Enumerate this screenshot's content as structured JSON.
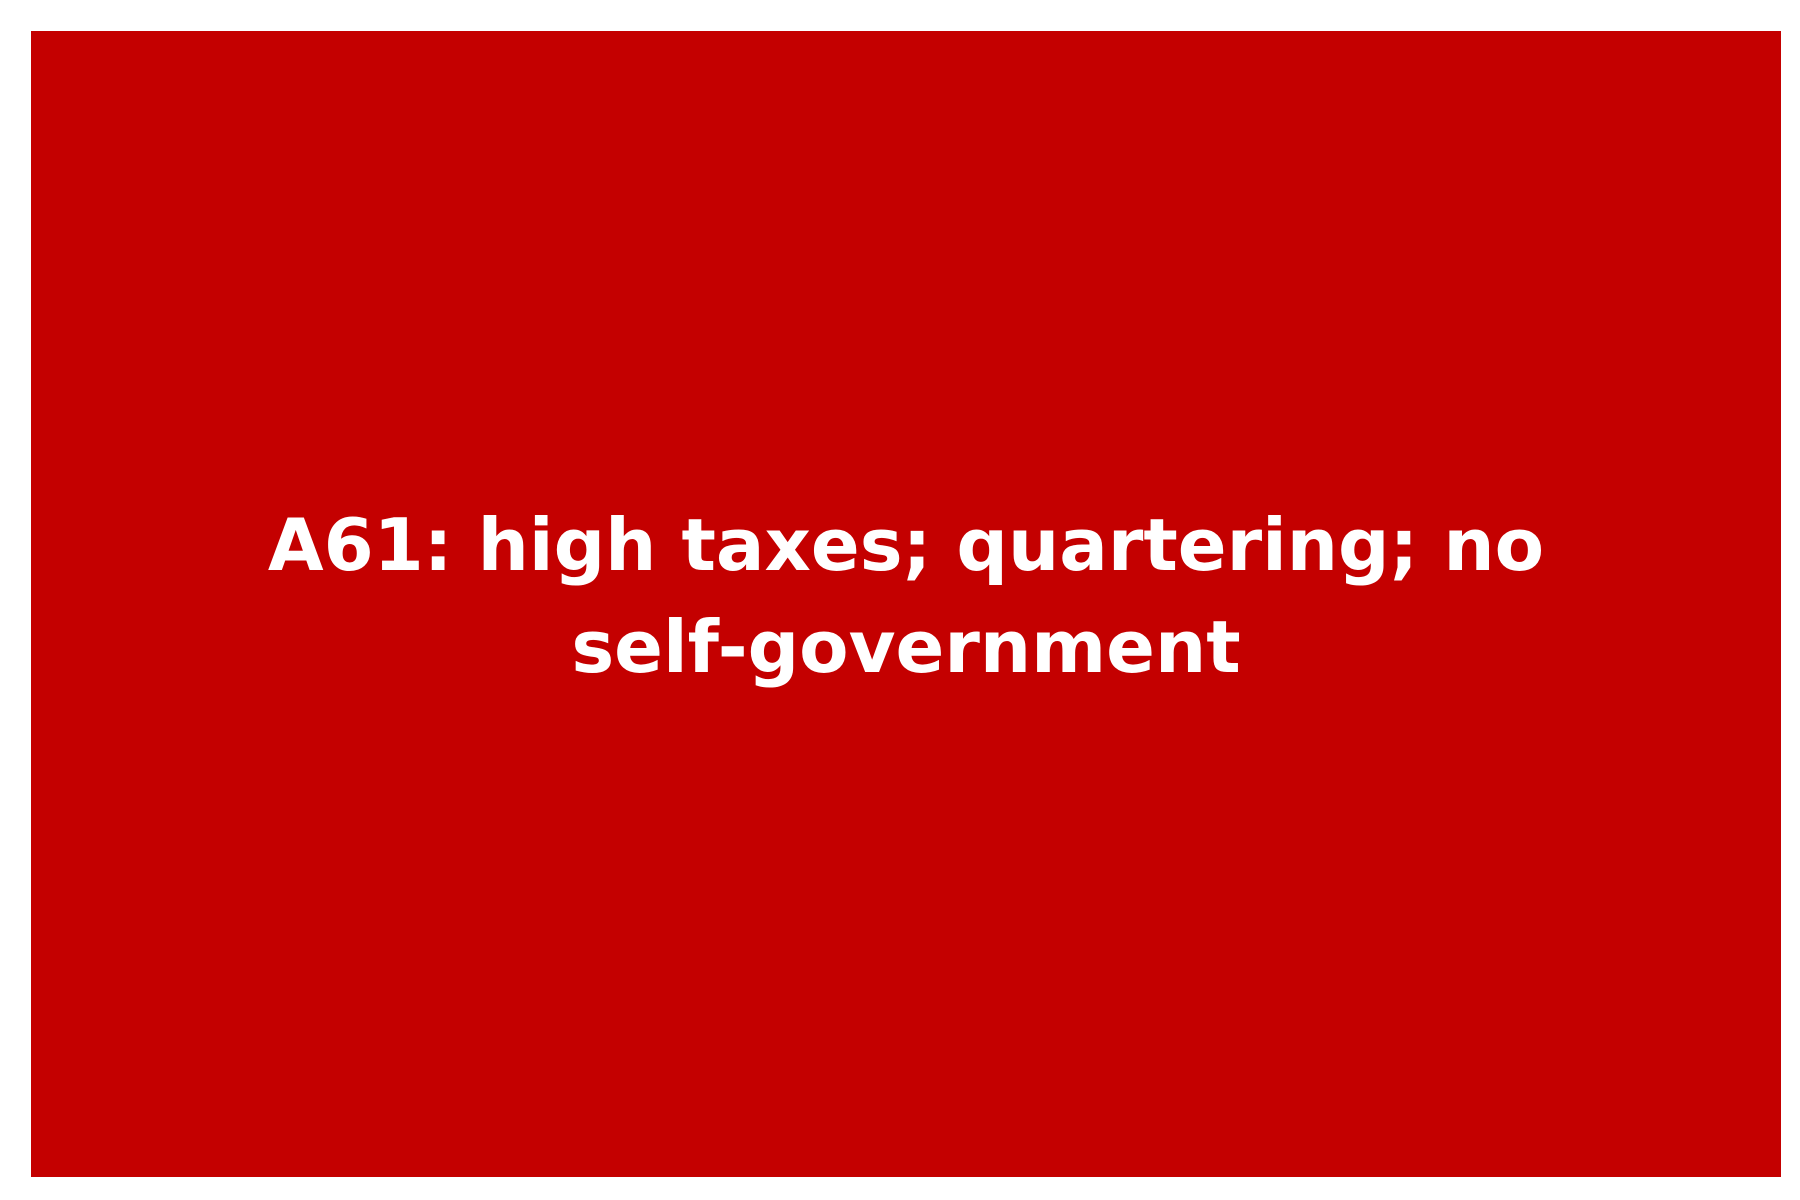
{
  "card": {
    "text": "A61: high taxes; quartering; no self-government",
    "background_color": "#c40000",
    "text_color": "#ffffff"
  }
}
